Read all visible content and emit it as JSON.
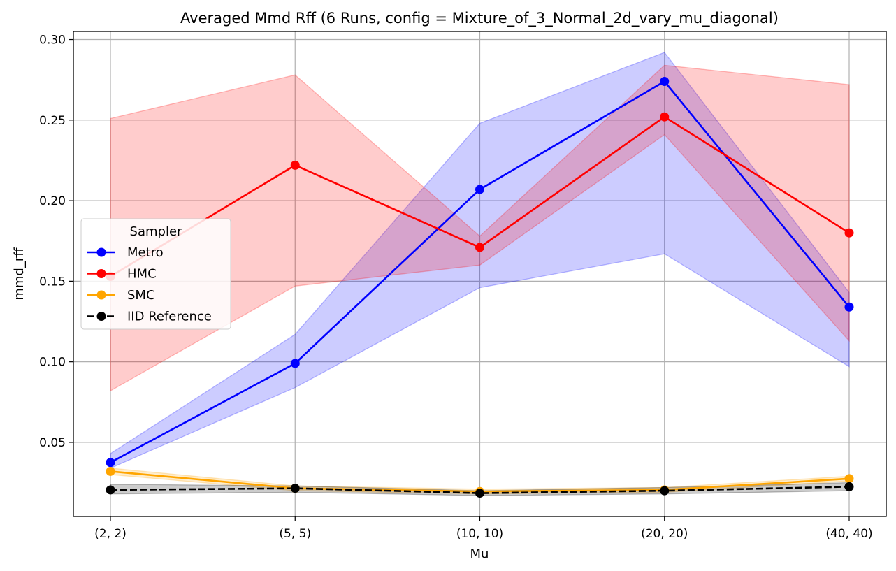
{
  "chart_data": {
    "type": "line",
    "title": "Averaged Mmd Rff (6 Runs, config = Mixture_of_3_Normal_2d_vary_mu_diagonal)",
    "xlabel": "Mu",
    "ylabel": "mmd_rff",
    "categories": [
      "(2, 2)",
      "(5, 5)",
      "(10, 10)",
      "(20, 20)",
      "(40, 40)"
    ],
    "ylim": [
      0.004,
      0.305
    ],
    "yticks": [
      "0.05",
      "0.10",
      "0.15",
      "0.20",
      "0.25",
      "0.30"
    ],
    "grid": true,
    "legend": {
      "title": "Sampler",
      "placement": "center-left"
    },
    "series": [
      {
        "name": "Metro",
        "color": "#0000ff",
        "dashed": false,
        "values": [
          0.0375,
          0.099,
          0.207,
          0.274,
          0.134
        ],
        "band_low": [
          0.034,
          0.084,
          0.146,
          0.167,
          0.097
        ],
        "band_high": [
          0.043,
          0.117,
          0.248,
          0.292,
          0.143
        ]
      },
      {
        "name": "HMC",
        "color": "#ff0000",
        "dashed": false,
        "values": [
          0.153,
          0.222,
          0.171,
          0.252,
          0.18
        ],
        "band_low": [
          0.082,
          0.147,
          0.16,
          0.241,
          0.113
        ],
        "band_high": [
          0.251,
          0.278,
          0.178,
          0.284,
          0.272
        ]
      },
      {
        "name": "SMC",
        "color": "#ffa500",
        "dashed": false,
        "values": [
          0.032,
          0.0215,
          0.0195,
          0.0205,
          0.0275
        ],
        "band_low": [
          0.03,
          0.02,
          0.018,
          0.019,
          0.026
        ],
        "band_high": [
          0.034,
          0.023,
          0.021,
          0.022,
          0.029
        ]
      },
      {
        "name": "IID Reference",
        "color": "#000000",
        "dashed": true,
        "values": [
          0.0205,
          0.0215,
          0.0185,
          0.02,
          0.0225
        ],
        "band_low": [
          0.018,
          0.019,
          0.017,
          0.018,
          0.02
        ],
        "band_high": [
          0.024,
          0.023,
          0.02,
          0.022,
          0.025
        ]
      }
    ]
  }
}
